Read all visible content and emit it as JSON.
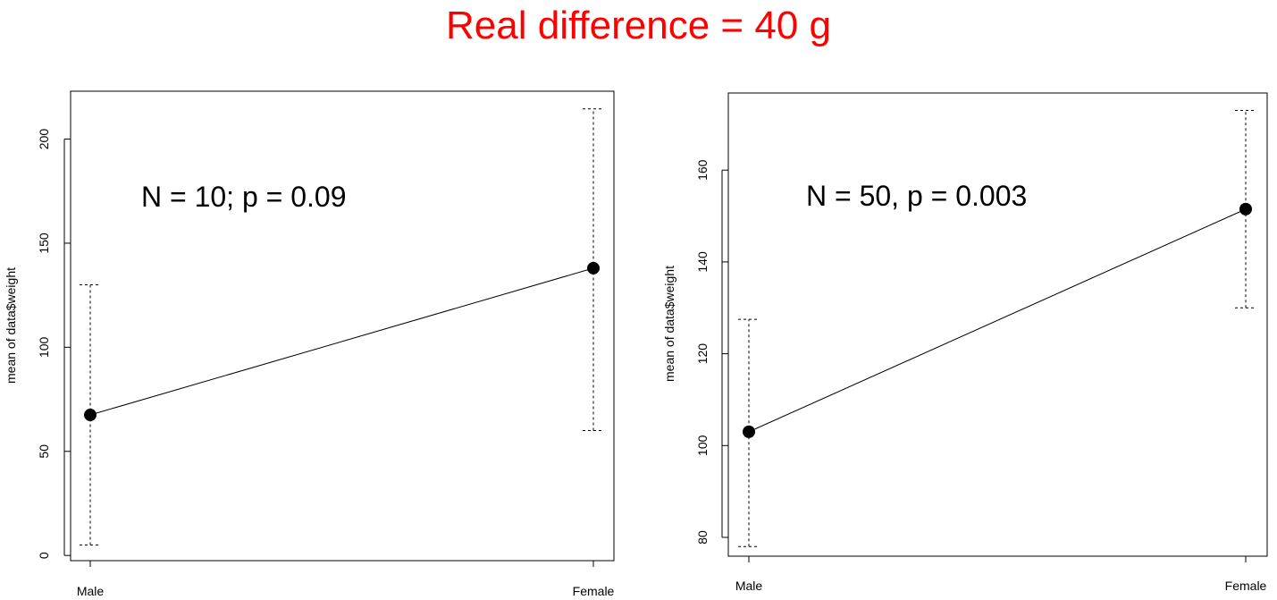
{
  "title": "Real difference = 40 g",
  "colors": {
    "title": "#ff0000",
    "axes": "#000000",
    "points": "#000000",
    "background": "#ffffff"
  },
  "chart_data": [
    {
      "type": "line",
      "categories": [
        "Male",
        "Female"
      ],
      "series": [
        {
          "values": [
            67.5,
            138
          ],
          "error_low": [
            5,
            60
          ],
          "error_high": [
            130,
            214.5
          ]
        }
      ],
      "ylabel": "mean of data$weight",
      "xlabel": "",
      "ylim": [
        -2.5,
        223
      ],
      "yticks": [
        0,
        50,
        100,
        150,
        200
      ],
      "annotation": "N = 10; p = 0.09",
      "grid": false,
      "box": true
    },
    {
      "type": "line",
      "categories": [
        "Male",
        "Female"
      ],
      "series": [
        {
          "values": [
            103,
            151.5
          ],
          "error_low": [
            78,
            130
          ],
          "error_high": [
            127.5,
            173
          ]
        }
      ],
      "ylabel": "mean of data$weight",
      "xlabel": "",
      "ylim": [
        75.9,
        176.8
      ],
      "yticks": [
        80,
        100,
        120,
        140,
        160
      ],
      "annotation": "N = 50, p = 0.003",
      "grid": false,
      "box": true
    }
  ]
}
